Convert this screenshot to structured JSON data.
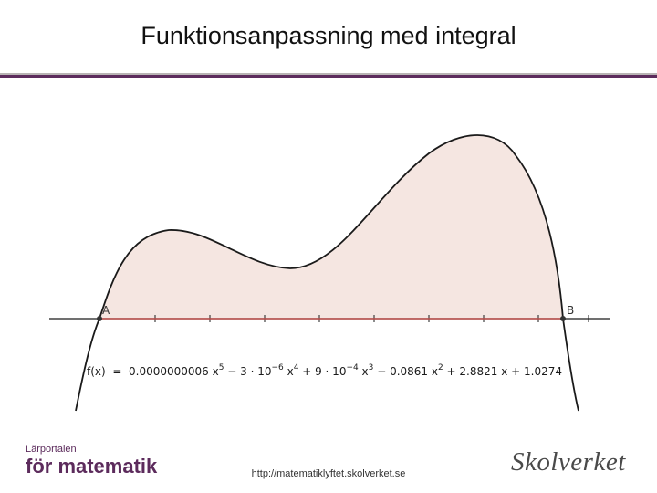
{
  "slide": {
    "title": "Funktionsanpassning med integral",
    "footer_url": "http://matematiklyftet.skolverket.se"
  },
  "graph": {
    "point_a": "A",
    "point_b": "B",
    "formula": {
      "prefix": "f(x)  =  0.0000000006 x",
      "exp5": "5",
      "part2": " − 3 · 10",
      "exp_neg6": "−6",
      "part3": " x",
      "exp4": "4",
      "part4": " + 9 · 10",
      "exp_neg4": "−4",
      "part5": " x",
      "exp3": "3",
      "part6": " − 0.0861 x",
      "exp2": "2",
      "part7": " + 2.8821 x + 1.0274"
    },
    "colors": {
      "curve": "#1a1a1a",
      "fill": "#f5e6e1",
      "fill_stroke": "#c0504d",
      "axis": "#1a1a1a"
    }
  },
  "logos": {
    "left_small": "Lärportalen",
    "left_big": "för matematik",
    "right": "Skolverket"
  }
}
